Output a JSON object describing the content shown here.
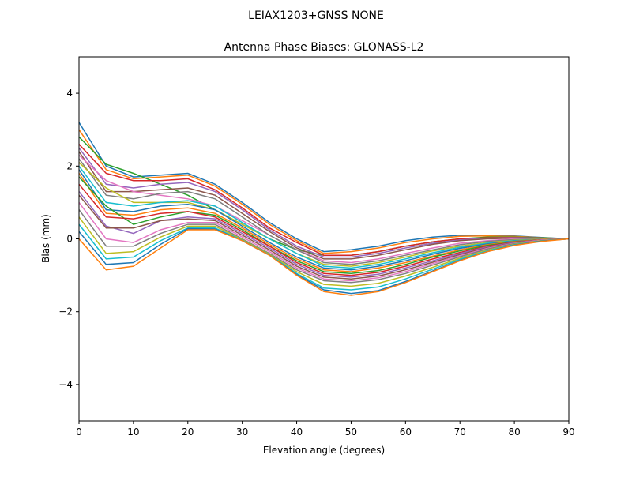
{
  "chart_data": {
    "type": "line",
    "suptitle": "LEIAX1203+GNSS  NONE",
    "title": "Antenna Phase Biases: GLONASS-L2",
    "xlabel": "Elevation angle (degrees)",
    "ylabel": "Bias (mm)",
    "xlim": [
      0,
      90
    ],
    "ylim": [
      -5,
      5
    ],
    "xticks": [
      0,
      10,
      20,
      30,
      40,
      50,
      60,
      70,
      80,
      90
    ],
    "yticks": [
      -4,
      -2,
      0,
      2,
      4
    ],
    "ytick_labels": [
      "−4",
      "−2",
      "0",
      "2",
      "4"
    ],
    "grid": false,
    "colors": [
      "#1f77b4",
      "#ff7f0e",
      "#2ca02c",
      "#d62728",
      "#9467bd",
      "#8c564b",
      "#e377c2",
      "#7f7f7f",
      "#bcbd22",
      "#17becf"
    ],
    "x": [
      0,
      5,
      10,
      15,
      20,
      25,
      30,
      35,
      40,
      45,
      50,
      55,
      60,
      65,
      70,
      75,
      80,
      85,
      90
    ],
    "series": [
      {
        "values": [
          3.2,
          2.0,
          1.7,
          1.75,
          1.8,
          1.5,
          1.0,
          0.45,
          0.0,
          -0.35,
          -0.3,
          -0.2,
          -0.05,
          0.05,
          0.1,
          0.1,
          0.08,
          0.04,
          0
        ]
      },
      {
        "values": [
          3.0,
          1.9,
          1.65,
          1.7,
          1.75,
          1.45,
          0.95,
          0.4,
          -0.05,
          -0.4,
          -0.35,
          -0.25,
          -0.1,
          0.0,
          0.07,
          0.08,
          0.07,
          0.03,
          0
        ]
      },
      {
        "values": [
          2.8,
          2.05,
          1.8,
          1.5,
          1.2,
          0.8,
          0.4,
          0.0,
          -0.3,
          -0.45,
          -0.45,
          -0.35,
          -0.2,
          -0.08,
          0.0,
          0.05,
          0.05,
          0.03,
          0
        ]
      },
      {
        "values": [
          2.6,
          1.8,
          1.6,
          1.6,
          1.65,
          1.35,
          0.85,
          0.3,
          -0.1,
          -0.45,
          -0.45,
          -0.35,
          -0.2,
          -0.08,
          0.0,
          0.03,
          0.04,
          0.02,
          0
        ]
      },
      {
        "values": [
          2.5,
          1.5,
          1.4,
          1.5,
          1.55,
          1.3,
          0.8,
          0.25,
          -0.2,
          -0.5,
          -0.5,
          -0.4,
          -0.25,
          -0.12,
          -0.03,
          0.02,
          0.03,
          0.02,
          0
        ]
      },
      {
        "values": [
          2.4,
          1.3,
          1.3,
          1.35,
          1.4,
          1.2,
          0.7,
          0.2,
          -0.25,
          -0.55,
          -0.55,
          -0.45,
          -0.3,
          -0.15,
          -0.05,
          0.0,
          0.02,
          0.01,
          0
        ]
      },
      {
        "values": [
          2.3,
          1.6,
          1.3,
          1.2,
          1.1,
          0.9,
          0.5,
          0.1,
          -0.3,
          -0.6,
          -0.65,
          -0.55,
          -0.4,
          -0.25,
          -0.12,
          -0.05,
          0.0,
          0.0,
          0
        ]
      },
      {
        "values": [
          2.2,
          1.2,
          1.1,
          1.25,
          1.3,
          1.1,
          0.6,
          0.1,
          -0.3,
          -0.65,
          -0.7,
          -0.6,
          -0.45,
          -0.3,
          -0.16,
          -0.07,
          -0.02,
          0.0,
          0
        ]
      },
      {
        "values": [
          2.1,
          1.4,
          1.0,
          1.0,
          1.0,
          0.8,
          0.4,
          0.0,
          -0.4,
          -0.7,
          -0.75,
          -0.65,
          -0.5,
          -0.33,
          -0.2,
          -0.1,
          -0.04,
          -0.01,
          0
        ]
      },
      {
        "values": [
          2.0,
          1.0,
          0.9,
          1.0,
          1.05,
          0.9,
          0.45,
          0.0,
          -0.4,
          -0.75,
          -0.8,
          -0.7,
          -0.55,
          -0.38,
          -0.23,
          -0.12,
          -0.05,
          -0.02,
          0
        ]
      },
      {
        "values": [
          1.9,
          0.8,
          0.75,
          0.9,
          0.95,
          0.8,
          0.35,
          -0.1,
          -0.5,
          -0.8,
          -0.85,
          -0.75,
          -0.6,
          -0.42,
          -0.26,
          -0.14,
          -0.06,
          -0.02,
          0
        ]
      },
      {
        "values": [
          1.8,
          0.7,
          0.65,
          0.8,
          0.85,
          0.7,
          0.3,
          -0.15,
          -0.55,
          -0.85,
          -0.9,
          -0.8,
          -0.65,
          -0.47,
          -0.3,
          -0.16,
          -0.07,
          -0.02,
          0
        ]
      },
      {
        "values": [
          1.7,
          0.9,
          0.4,
          0.6,
          0.75,
          0.65,
          0.25,
          -0.2,
          -0.6,
          -0.9,
          -0.95,
          -0.87,
          -0.7,
          -0.5,
          -0.33,
          -0.18,
          -0.08,
          -0.03,
          0
        ]
      },
      {
        "values": [
          1.5,
          0.6,
          0.55,
          0.7,
          0.75,
          0.6,
          0.2,
          -0.2,
          -0.65,
          -0.95,
          -1.0,
          -0.92,
          -0.75,
          -0.55,
          -0.37,
          -0.2,
          -0.09,
          -0.03,
          0
        ]
      },
      {
        "values": [
          1.3,
          0.35,
          0.15,
          0.5,
          0.6,
          0.55,
          0.15,
          -0.25,
          -0.7,
          -1.0,
          -1.05,
          -0.97,
          -0.8,
          -0.6,
          -0.4,
          -0.22,
          -0.1,
          -0.03,
          0
        ]
      },
      {
        "values": [
          1.2,
          0.3,
          0.3,
          0.5,
          0.55,
          0.5,
          0.1,
          -0.3,
          -0.75,
          -1.05,
          -1.1,
          -1.02,
          -0.85,
          -0.64,
          -0.43,
          -0.24,
          -0.11,
          -0.04,
          0
        ]
      },
      {
        "values": [
          1.0,
          0.0,
          -0.1,
          0.25,
          0.45,
          0.45,
          0.05,
          -0.35,
          -0.8,
          -1.1,
          -1.15,
          -1.07,
          -0.9,
          -0.68,
          -0.46,
          -0.26,
          -0.12,
          -0.04,
          0
        ]
      },
      {
        "values": [
          0.8,
          -0.2,
          -0.2,
          0.15,
          0.4,
          0.4,
          0.0,
          -0.4,
          -0.85,
          -1.15,
          -1.2,
          -1.12,
          -0.95,
          -0.72,
          -0.49,
          -0.28,
          -0.13,
          -0.05,
          0
        ]
      },
      {
        "values": [
          0.6,
          -0.4,
          -0.35,
          0.05,
          0.35,
          0.35,
          -0.02,
          -0.42,
          -0.9,
          -1.25,
          -1.3,
          -1.22,
          -1.02,
          -0.78,
          -0.53,
          -0.31,
          -0.15,
          -0.05,
          0
        ]
      },
      {
        "values": [
          0.4,
          -0.55,
          -0.5,
          -0.05,
          0.3,
          0.3,
          -0.04,
          -0.44,
          -0.95,
          -1.35,
          -1.4,
          -1.32,
          -1.1,
          -0.83,
          -0.56,
          -0.33,
          -0.16,
          -0.06,
          0
        ]
      },
      {
        "values": [
          0.2,
          -0.7,
          -0.65,
          -0.15,
          0.28,
          0.27,
          -0.05,
          -0.45,
          -0.98,
          -1.4,
          -1.5,
          -1.42,
          -1.17,
          -0.88,
          -0.59,
          -0.35,
          -0.17,
          -0.06,
          0
        ]
      },
      {
        "values": [
          0.0,
          -0.85,
          -0.75,
          -0.25,
          0.25,
          0.25,
          -0.05,
          -0.45,
          -1.0,
          -1.45,
          -1.55,
          -1.45,
          -1.2,
          -0.9,
          -0.6,
          -0.35,
          -0.18,
          -0.07,
          0
        ]
      }
    ]
  }
}
